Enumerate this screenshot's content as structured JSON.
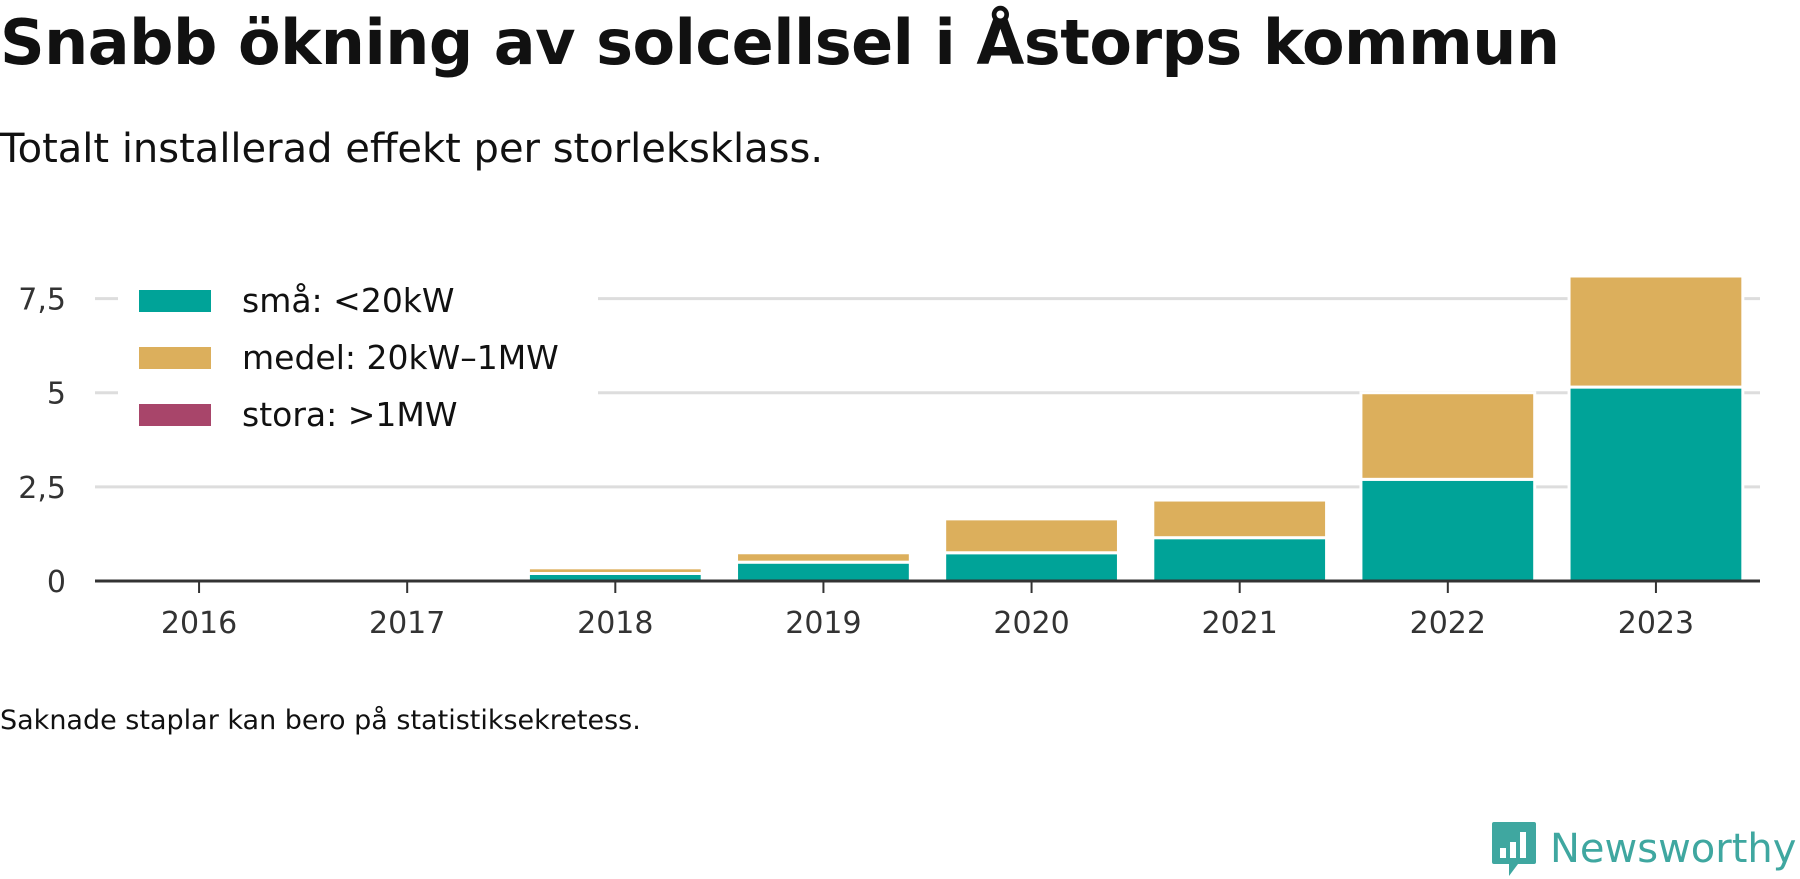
{
  "title": "Snabb ökning av solcellsel i Åstorps kommun",
  "subtitle": "Totalt installerad effekt per storleksklass.",
  "note": "Saknade staplar kan bero på statistiksekretess.",
  "brand": {
    "name": "Newsworthy",
    "color": "#3fa7a0",
    "icon": "newsworthy-logo-icon"
  },
  "chart_data": {
    "type": "bar",
    "stacked": true,
    "categories": [
      "2016",
      "2017",
      "2018",
      "2019",
      "2020",
      "2021",
      "2022",
      "2023"
    ],
    "series": [
      {
        "name": "små: <20kW",
        "color": "#00a398",
        "values": [
          0,
          0,
          0.2,
          0.5,
          0.75,
          1.15,
          2.7,
          5.15
        ]
      },
      {
        "name": "medel: 20kW–1MW",
        "color": "#dcaf5c",
        "values": [
          0,
          0,
          0.15,
          0.25,
          0.9,
          1.0,
          2.3,
          2.95
        ]
      },
      {
        "name": "stora: >1MW",
        "color": "#a8456a",
        "values": [
          0,
          0,
          0,
          0,
          0,
          0,
          0,
          0
        ]
      }
    ],
    "yticks": [
      0,
      2.5,
      5,
      7.5
    ],
    "ytick_labels": [
      "0",
      "2,5",
      "5",
      "7,5"
    ],
    "ylim": [
      0,
      8.1
    ],
    "grid": true,
    "legend_position": "top-left"
  }
}
